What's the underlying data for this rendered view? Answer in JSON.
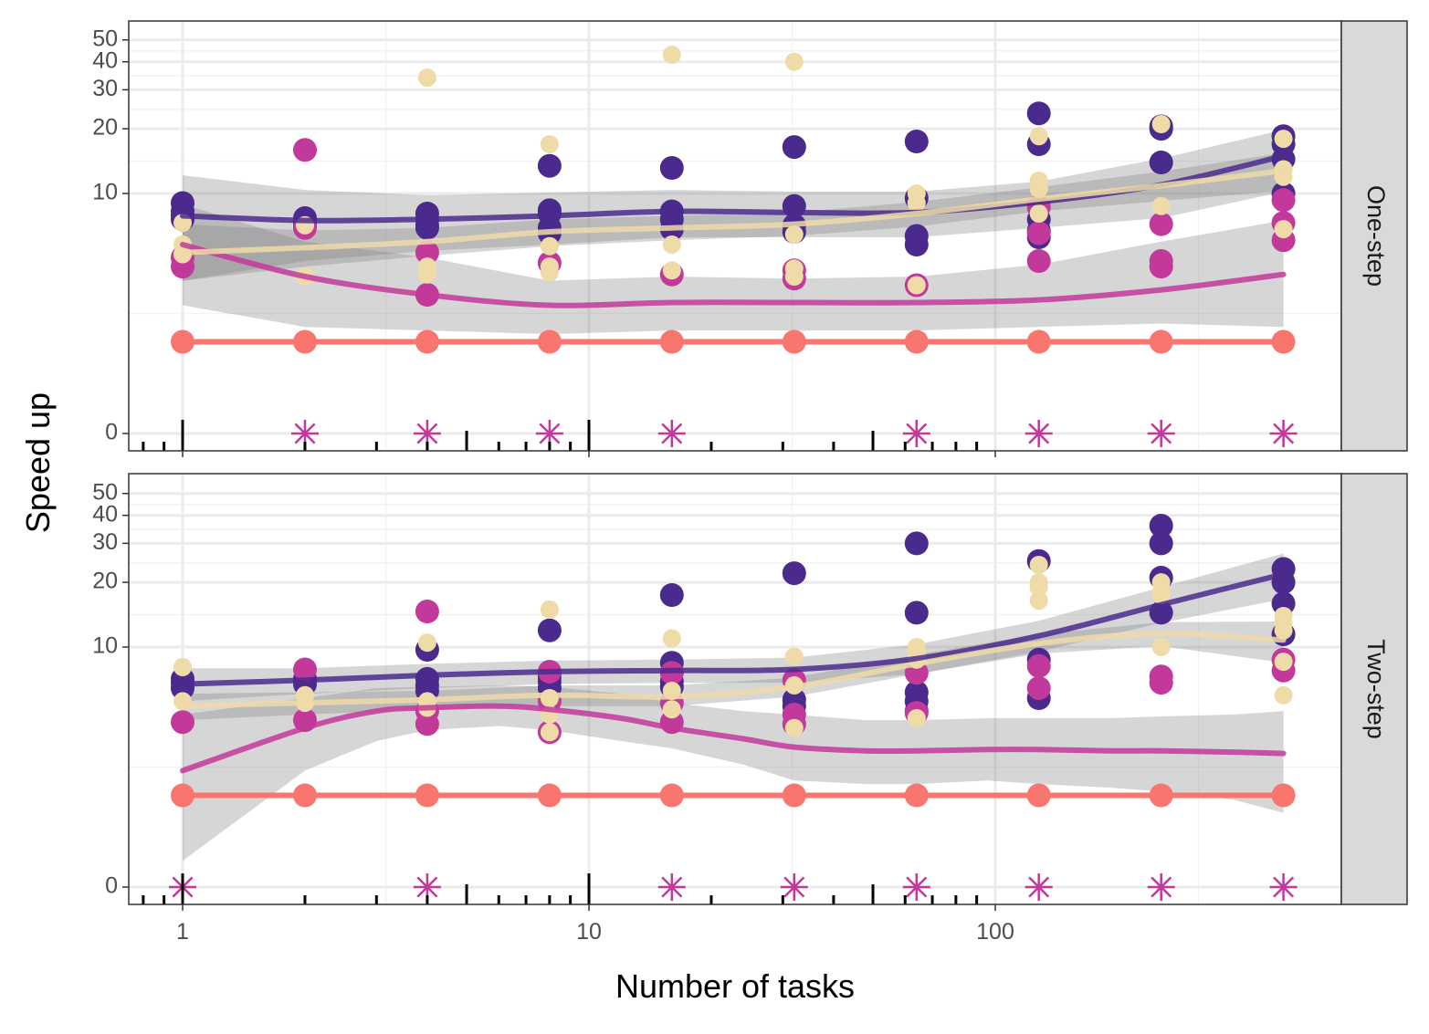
{
  "chart_data": {
    "type": "scatter",
    "xlabel": "Number of tasks",
    "ylabel": "Speed up",
    "x_scale": "log10",
    "x_ticks": [
      1,
      10,
      100
    ],
    "x_tick_labels": [
      "1",
      "10",
      "100"
    ],
    "xlim": [
      0.75,
      680
    ],
    "y_scale": "pseudo-log",
    "y_ticks": [
      0,
      10,
      20,
      30,
      40,
      50
    ],
    "y_tick_labels": [
      "0",
      "10",
      "20",
      "30",
      "40",
      "50"
    ],
    "grid": true,
    "legend": "none",
    "smoothing": "loess with confidence band",
    "colors": {
      "dark_purple": "#4a2a8c",
      "magenta": "#c2389b",
      "beige": "#efdba8",
      "salmon": "#f8766d",
      "band": "#808080",
      "strip_fill": "#d9d9d9",
      "panel_border": "#333333"
    },
    "facets": [
      {
        "label": "One-step",
        "series": [
          {
            "color": "dark_purple",
            "x": [
              1,
              1,
              1,
              1,
              2,
              2,
              2,
              4,
              4,
              4,
              4,
              8,
              8,
              8,
              8,
              8,
              16,
              16,
              16,
              16,
              32,
              32,
              32,
              32,
              64,
              64,
              64,
              64,
              128,
              128,
              128,
              128,
              128,
              256,
              256,
              256,
              512,
              512,
              512,
              512
            ],
            "y": [
              9,
              8.2,
              7.8,
              7.5,
              7.6,
              7.2,
              6.9,
              8,
              7.5,
              7,
              6.8,
              13.5,
              8.3,
              8,
              6.8,
              6.4,
              13.2,
              8.2,
              7.5,
              6.7,
              16.5,
              8.7,
              7,
              6.5,
              17.5,
              9.5,
              6.2,
              5.6,
              23.5,
              17,
              7.5,
              6.6,
              6.1,
              20.5,
              14,
              20,
              18.5,
              17,
              14.5,
              10
            ],
            "smooth_x": [
              1,
              2,
              4,
              8,
              16,
              32,
              64,
              128,
              256,
              512
            ],
            "smooth_y": [
              7.8,
              7.4,
              7.5,
              7.8,
              8.2,
              8.1,
              8.1,
              9.1,
              11,
              15
            ],
            "band_lo": [
              3.6,
              4.6,
              5.2,
              5.6,
              6.1,
              6.1,
              6.1,
              6.8,
              7.6,
              10.2
            ],
            "band_hi": [
              12.2,
              10.4,
              9.8,
              10.1,
              10.4,
              10.2,
              10.2,
              11.4,
              14.6,
              19.8
            ]
          },
          {
            "color": "magenta",
            "x": [
              1,
              1,
              2,
              2,
              4,
              4,
              8,
              16,
              32,
              32,
              64,
              128,
              128,
              128,
              256,
              256,
              256,
              512,
              512,
              512
            ],
            "y": [
              4.8,
              4.3,
              16,
              6.8,
              5.1,
              3,
              4.5,
              3.9,
              4.1,
              3.7,
              3.4,
              8.6,
              6.4,
              4.6,
              7.1,
              4.6,
              4.3,
              9.3,
              7.2,
              5.9
            ],
            "smooth_x": [
              1,
              2,
              4,
              8,
              16,
              32,
              64,
              128,
              256,
              512
            ],
            "smooth_y": [
              5.6,
              3.8,
              3,
              2.6,
              2.7,
              2.7,
              2.7,
              2.8,
              3.2,
              3.9
            ],
            "band_lo": [
              2.6,
              1.9,
              1.8,
              1.7,
              1.8,
              1.8,
              1.8,
              1.9,
              2,
              1.9
            ],
            "band_hi": [
              8.9,
              5.8,
              4.8,
              3.6,
              3.8,
              3.7,
              3.8,
              4.4,
              5.8,
              7.4
            ]
          },
          {
            "color": "beige",
            "x": [
              1,
              1,
              1,
              2,
              2,
              4,
              4,
              4,
              8,
              8,
              8,
              8,
              16,
              16,
              16,
              32,
              32,
              32,
              32,
              64,
              64,
              64,
              128,
              128,
              128,
              128,
              256,
              256,
              512,
              512,
              512,
              512
            ],
            "y": [
              7.2,
              5.6,
              5,
              7,
              3.8,
              34,
              4.3,
              3.9,
              17,
              5.5,
              4.3,
              4,
              43,
              5.6,
              4.1,
              40,
              6.3,
              4.2,
              3.8,
              10,
              9,
              3.4,
              18.5,
              11.5,
              10.5,
              8,
              21,
              8.7,
              18,
              13,
              12,
              6.7
            ],
            "smooth_x": [
              1,
              2,
              4,
              8,
              16,
              32,
              64,
              128,
              256,
              512
            ],
            "smooth_y": [
              5.1,
              5.4,
              5.8,
              6.5,
              6.8,
              7.1,
              8,
              9.4,
              10.9,
              12.8
            ],
            "band_lo": [
              3.6,
              4.3,
              4.9,
              5.5,
              5.9,
              6.2,
              6.9,
              8.2,
              9.2,
              10.3
            ],
            "band_hi": [
              7.1,
              6.6,
              6.8,
              7.5,
              7.8,
              8.1,
              9.1,
              10.7,
              12.7,
              15.5
            ]
          },
          {
            "color": "salmon",
            "x": [
              1,
              2,
              4,
              8,
              16,
              32,
              64,
              128,
              256,
              512
            ],
            "y": [
              1.5,
              1.5,
              1.5,
              1.5,
              1.5,
              1.5,
              1.5,
              1.5,
              1.5,
              1.5
            ]
          }
        ],
        "star_x": [
          2,
          4,
          8,
          16,
          64,
          128,
          256,
          512
        ]
      },
      {
        "label": "Two-step",
        "series": [
          {
            "color": "dark_purple",
            "x": [
              1,
              1,
              1,
              2,
              2,
              4,
              4,
              4,
              4,
              8,
              8,
              8,
              8,
              16,
              16,
              16,
              16,
              32,
              32,
              32,
              64,
              64,
              64,
              64,
              64,
              128,
              128,
              128,
              256,
              256,
              256,
              256,
              512,
              512,
              512,
              512
            ],
            "y": [
              7,
              6.7,
              6.3,
              7,
              6.6,
              9.7,
              7,
              6.5,
              6.1,
              12,
              7.2,
              6.8,
              6.3,
              17.5,
              8.4,
              6.8,
              6.4,
              22,
              5.5,
              5.1,
              30,
              14.5,
              6,
              5.4,
              4.8,
              25,
              8.7,
              5.6,
              36,
              30,
              21,
              14.5,
              23,
              20,
              16,
              11.5
            ],
            "smooth_x": [
              1,
              2,
              4,
              8,
              16,
              32,
              64,
              128,
              256,
              512
            ],
            "smooth_y": [
              6.6,
              6.9,
              7.3,
              7.6,
              7.7,
              7.8,
              8.8,
              11.3,
              15.8,
              21.8
            ],
            "band_lo": [
              5.4,
              5.9,
              6.3,
              6.6,
              6.7,
              6.7,
              7.4,
              9.5,
              13,
              16.8
            ],
            "band_hi": [
              7.9,
              7.9,
              8.3,
              8.6,
              8.7,
              8.9,
              10.3,
              13.3,
              19,
              27
            ]
          },
          {
            "color": "magenta",
            "x": [
              1,
              2,
              2,
              4,
              4,
              4,
              8,
              8,
              8,
              16,
              16,
              16,
              32,
              32,
              32,
              64,
              64,
              128,
              128,
              256,
              256,
              512,
              512
            ],
            "y": [
              4.2,
              7.8,
              4.3,
              14.7,
              4.8,
              4.1,
              7.6,
              5.4,
              3.7,
              7.5,
              5.3,
              4.2,
              6.9,
              4.6,
              4.1,
              7.5,
              4.7,
              8.1,
              6.3,
              7.2,
              6.7,
              8.7,
              7.7
            ],
            "smooth_x": [
              1,
              2,
              3,
              4,
              6,
              8,
              12,
              16,
              24,
              32,
              48,
              64,
              96,
              128,
              192,
              256,
              384,
              512
            ],
            "smooth_y": [
              2.2,
              3.9,
              4.8,
              5,
              5.1,
              4.9,
              4.4,
              3.9,
              3.4,
              3.05,
              2.9,
              2.9,
              2.95,
              2.95,
              2.9,
              2.9,
              2.85,
              2.8
            ],
            "band_lo": [
              0.3,
              2.2,
              3.3,
              3.8,
              4,
              3.8,
              3.3,
              3,
              2.4,
              1.9,
              1.8,
              1.8,
              1.9,
              1.8,
              1.7,
              1.6,
              1.4,
              1.1
            ],
            "band_hi": [
              4.6,
              5.6,
              6.3,
              6.4,
              6.5,
              6.4,
              5.9,
              5.3,
              4.8,
              4.6,
              4.3,
              4.3,
              4.4,
              4.4,
              4.4,
              4.5,
              4.6,
              4.8
            ]
          },
          {
            "color": "beige",
            "x": [
              1,
              1,
              2,
              2,
              4,
              4,
              4,
              8,
              8,
              8,
              8,
              16,
              16,
              16,
              32,
              32,
              32,
              64,
              64,
              64,
              64,
              64,
              128,
              128,
              128,
              128,
              256,
              256,
              256,
              256,
              512,
              512,
              512,
              512,
              512
            ],
            "y": [
              8,
              5.4,
              5.8,
              5.3,
              10.5,
              5.4,
              5,
              15,
              5.6,
              4.6,
              3.7,
              11,
              6.1,
              4.9,
              9,
              6.5,
              3.9,
              10,
              9.5,
              9,
              8.7,
              4.4,
              24,
              20,
              19,
              16.5,
              20,
              18,
              17.5,
              10,
              14,
              13,
              12,
              8.5,
              5.8
            ],
            "smooth_x": [
              1,
              2,
              4,
              8,
              16,
              32,
              64,
              128,
              256,
              512
            ],
            "smooth_y": [
              5.1,
              5.3,
              5.5,
              5.8,
              5.7,
              6.4,
              8.3,
              10.4,
              11.6,
              10.8
            ],
            "band_lo": [
              4.3,
              4.6,
              4.9,
              5.1,
              5.1,
              5.7,
              7.4,
              9.3,
              10.1,
              8.4
            ],
            "band_hi": [
              5.9,
              6,
              6.1,
              6.5,
              6.5,
              7.1,
              9.2,
              11.5,
              13.1,
              13.2
            ]
          },
          {
            "color": "salmon",
            "x": [
              1,
              2,
              4,
              8,
              16,
              32,
              64,
              128,
              256,
              512
            ],
            "y": [
              1.5,
              1.5,
              1.5,
              1.5,
              1.5,
              1.5,
              1.5,
              1.5,
              1.5,
              1.5
            ]
          }
        ],
        "star_x": [
          1,
          4,
          16,
          32,
          64,
          128,
          256,
          512
        ]
      }
    ]
  }
}
